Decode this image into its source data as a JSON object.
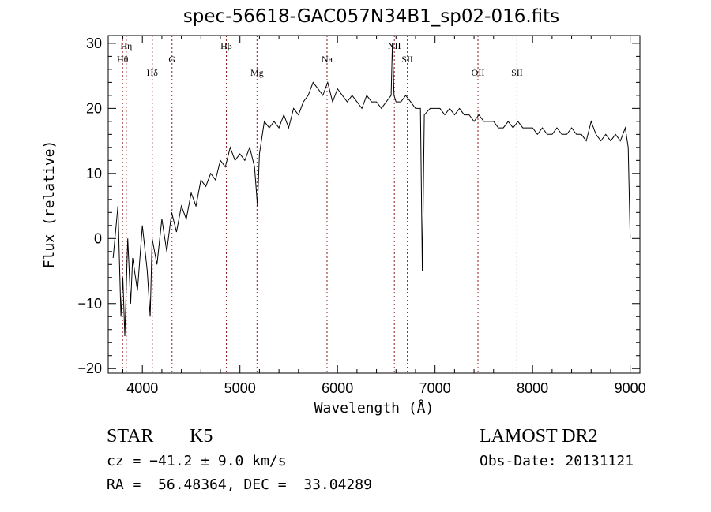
{
  "chart_data": {
    "type": "line",
    "title": "spec-56618-GAC057N34B1_sp02-016.fits",
    "xlabel": "Wavelength (Å)",
    "ylabel": "Flux (relative)",
    "xlim": [
      3650,
      9100
    ],
    "ylim": [
      -20.7,
      31.2
    ],
    "xticks": [
      4000,
      5000,
      6000,
      7000,
      8000,
      9000
    ],
    "yticks": [
      -20,
      -10,
      0,
      10,
      20,
      30
    ],
    "grid": false,
    "lines": [
      {
        "label": "Hη",
        "x": 3835,
        "row": 0
      },
      {
        "label": "Hθ",
        "x": 3797,
        "row": 1
      },
      {
        "label": "Hδ",
        "x": 4102,
        "row": 2
      },
      {
        "label": "G",
        "x": 4304,
        "row": 1
      },
      {
        "label": "Hβ",
        "x": 4861,
        "row": 0
      },
      {
        "label": "Mg",
        "x": 5175,
        "row": 2
      },
      {
        "label": "Na",
        "x": 5893,
        "row": 1
      },
      {
        "label": "NII",
        "x": 6583,
        "row": 0
      },
      {
        "label": "SII",
        "x": 6716,
        "row": 1
      },
      {
        "label": "OII",
        "x": 7440,
        "row": 2
      },
      {
        "label": "SII",
        "x": 7840,
        "row": 2
      }
    ],
    "series": [
      {
        "name": "flux",
        "x": [
          3700,
          3750,
          3780,
          3800,
          3820,
          3850,
          3880,
          3900,
          3950,
          4000,
          4050,
          4080,
          4100,
          4150,
          4200,
          4250,
          4300,
          4350,
          4400,
          4450,
          4500,
          4550,
          4600,
          4650,
          4700,
          4750,
          4800,
          4850,
          4900,
          4950,
          5000,
          5050,
          5100,
          5150,
          5180,
          5200,
          5250,
          5300,
          5350,
          5400,
          5450,
          5500,
          5550,
          5600,
          5650,
          5700,
          5750,
          5800,
          5850,
          5900,
          5950,
          6000,
          6050,
          6100,
          6150,
          6200,
          6250,
          6300,
          6350,
          6400,
          6450,
          6500,
          6550,
          6563,
          6580,
          6600,
          6650,
          6700,
          6750,
          6800,
          6850,
          6870,
          6890,
          6950,
          7000,
          7050,
          7100,
          7150,
          7200,
          7250,
          7300,
          7350,
          7400,
          7450,
          7500,
          7550,
          7600,
          7650,
          7700,
          7750,
          7800,
          7850,
          7900,
          7950,
          8000,
          8050,
          8100,
          8150,
          8200,
          8250,
          8300,
          8350,
          8400,
          8450,
          8500,
          8550,
          8600,
          8650,
          8700,
          8750,
          8800,
          8850,
          8900,
          8950,
          8980,
          9000
        ],
        "y": [
          -3,
          5,
          -12,
          -6,
          -15,
          0,
          -10,
          -3,
          -8,
          2,
          -5,
          -12,
          0,
          -4,
          3,
          -2,
          4,
          1,
          5,
          3,
          7,
          5,
          9,
          8,
          10,
          9,
          12,
          11,
          14,
          12,
          13,
          12,
          14,
          11,
          5,
          13,
          18,
          17,
          18,
          17,
          19,
          17,
          20,
          19,
          21,
          22,
          24,
          23,
          22,
          24,
          21,
          23,
          22,
          21,
          22,
          21,
          20,
          22,
          21,
          21,
          20,
          21,
          22,
          30,
          22,
          21,
          21,
          22,
          21,
          20,
          20,
          -5,
          19,
          20,
          20,
          20,
          19,
          20,
          19,
          20,
          19,
          19,
          18,
          19,
          18,
          18,
          18,
          17,
          17,
          18,
          17,
          18,
          17,
          17,
          17,
          16,
          17,
          16,
          16,
          17,
          16,
          16,
          17,
          16,
          16,
          15,
          18,
          16,
          15,
          16,
          15,
          16,
          15,
          17,
          14,
          0
        ]
      }
    ]
  },
  "info": {
    "class": "STAR",
    "subclass": "K5",
    "survey": "LAMOST DR2",
    "cz": "cz = −41.2 ± 9.0 km/s",
    "obs_date": "Obs-Date: 20131121",
    "coords": "RA =  56.48364, DEC =  33.04289"
  }
}
